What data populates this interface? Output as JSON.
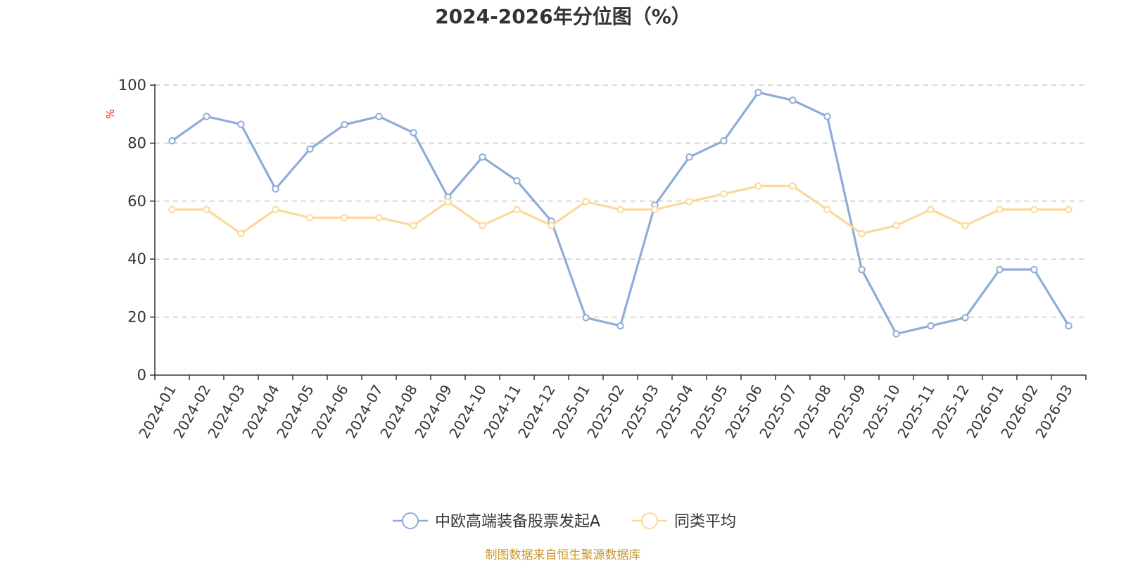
{
  "chart_data": {
    "type": "line",
    "title": "2024-2026年分位图（%）",
    "ylabel": "%",
    "xlabel": "",
    "ylim": [
      0,
      100
    ],
    "yticks": [
      0,
      20,
      40,
      60,
      80,
      100
    ],
    "grid": true,
    "legend_position": "bottom",
    "categories": [
      "2024-01",
      "2024-02",
      "2024-03",
      "2024-04",
      "2024-05",
      "2024-06",
      "2024-07",
      "2024-08",
      "2024-09",
      "2024-10",
      "2024-11",
      "2024-12",
      "2025-01",
      "2025-02",
      "2025-03",
      "2025-04",
      "2025-05",
      "2025-06",
      "2025-07",
      "2025-08",
      "2025-09",
      "2025-10",
      "2025-11",
      "2025-12",
      "2026-01",
      "2026-02",
      "2026-03"
    ],
    "series": [
      {
        "name": "中欧高端装备股票发起A",
        "color": "#8eacd8",
        "values": [
          80.8,
          89.2,
          86.5,
          64.2,
          78.0,
          86.4,
          89.2,
          83.6,
          61.4,
          75.2,
          67.0,
          53.1,
          19.8,
          17.0,
          58.6,
          75.2,
          80.8,
          97.5,
          94.8,
          89.2,
          36.4,
          14.2,
          17.0,
          19.8,
          36.4,
          36.4,
          17.0
        ]
      },
      {
        "name": "同类平均",
        "color": "#fbd999",
        "values": [
          57.1,
          57.1,
          48.8,
          57.1,
          54.3,
          54.3,
          54.3,
          51.6,
          59.8,
          51.6,
          57.1,
          51.6,
          59.8,
          57.1,
          57.1,
          59.8,
          62.5,
          65.2,
          65.2,
          57.1,
          48.8,
          51.6,
          57.1,
          51.6,
          57.1,
          57.1,
          57.1
        ]
      }
    ],
    "source": "制图数据来自恒生聚源数据库"
  }
}
